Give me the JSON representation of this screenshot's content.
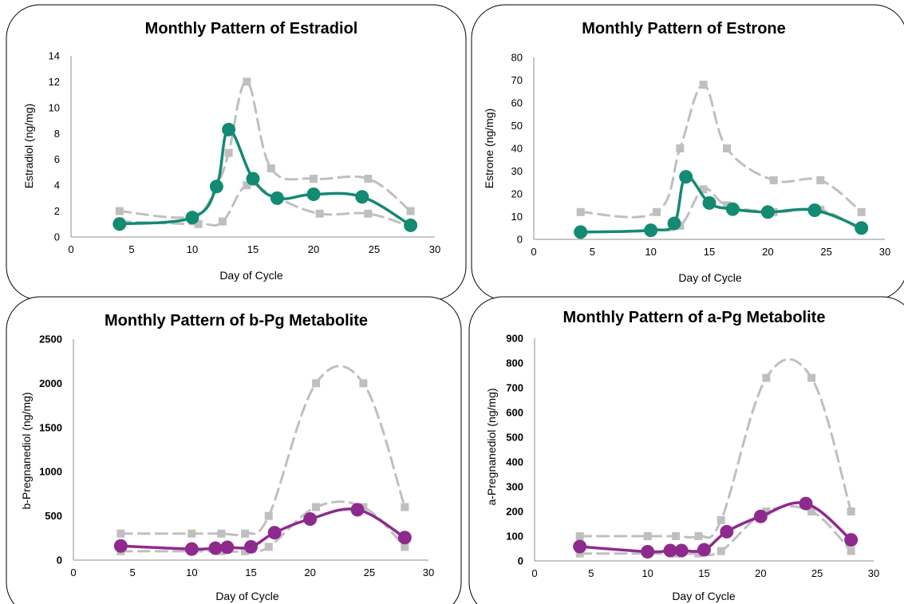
{
  "chart_data": [
    {
      "type": "line",
      "title": "Monthly Pattern of Estradiol",
      "xlabel": "Day of Cycle",
      "ylabel": "Estradiol (ng/mg)",
      "xlim": [
        0,
        30
      ],
      "ylim": [
        0,
        14
      ],
      "xticks": [
        0,
        5,
        10,
        15,
        20,
        25,
        30
      ],
      "yticks": [
        0,
        2,
        4,
        6,
        8,
        10,
        12,
        14
      ],
      "bold_yticks": false,
      "legend": "none",
      "grid": false,
      "colors": {
        "series": "#138a72",
        "range": "#bfbfbf"
      },
      "series": [
        {
          "role": "range-high",
          "x": [
            4,
            10,
            12,
            13,
            14.5,
            16.5,
            20,
            24.5,
            28
          ],
          "y": [
            2,
            1.6,
            4,
            6.5,
            12,
            5.3,
            4.5,
            4.5,
            2
          ]
        },
        {
          "role": "range-low",
          "x": [
            4,
            10.5,
            12.5,
            14.5,
            17,
            20.5,
            24.5,
            28
          ],
          "y": [
            1.2,
            1.0,
            1.2,
            4,
            3,
            1.8,
            1.8,
            0.8
          ]
        },
        {
          "role": "main",
          "x": [
            4,
            10,
            12,
            13,
            15,
            17,
            20,
            24,
            28
          ],
          "y": [
            1.0,
            1.5,
            3.9,
            8.3,
            4.5,
            3.0,
            3.3,
            3.1,
            0.9
          ]
        }
      ]
    },
    {
      "type": "line",
      "title": "Monthly Pattern of Estrone",
      "xlabel": "Day of Cycle",
      "ylabel": "Estrone (ng/mg)",
      "xlim": [
        0,
        30
      ],
      "ylim": [
        0,
        80
      ],
      "xticks": [
        0,
        5,
        10,
        15,
        20,
        25,
        30
      ],
      "yticks": [
        0,
        10,
        20,
        30,
        40,
        50,
        60,
        70,
        80
      ],
      "bold_yticks": false,
      "legend": "none",
      "grid": false,
      "colors": {
        "series": "#138a72",
        "range": "#bfbfbf"
      },
      "series": [
        {
          "role": "range-high",
          "x": [
            4,
            10.5,
            12.5,
            14.5,
            16.5,
            20.5,
            24.5,
            28
          ],
          "y": [
            12,
            12,
            40,
            68,
            40,
            26,
            26,
            12
          ]
        },
        {
          "role": "range-low",
          "x": [
            4,
            10,
            12.5,
            14.5,
            16.5,
            20.5,
            24.5,
            28
          ],
          "y": [
            3,
            4,
            6,
            22,
            15,
            12,
            13,
            4
          ]
        },
        {
          "role": "main",
          "x": [
            4,
            10,
            12,
            13,
            15,
            17,
            20,
            24,
            28
          ],
          "y": [
            3.2,
            4.0,
            7.0,
            27.5,
            16.0,
            13.3,
            12.0,
            12.8,
            5.0
          ]
        }
      ]
    },
    {
      "type": "line",
      "title": "Monthly Pattern of b-Pg Metabolite",
      "xlabel": "Day of Cycle",
      "ylabel": "b-Pregnanediol (ng/mg)",
      "xlim": [
        0,
        30
      ],
      "ylim": [
        0,
        2500
      ],
      "xticks": [
        0,
        5,
        10,
        15,
        20,
        25,
        30
      ],
      "yticks": [
        0,
        500,
        1000,
        1500,
        2000,
        2500
      ],
      "bold_yticks": true,
      "legend": "none",
      "grid": false,
      "colors": {
        "series": "#8e2a8e",
        "range": "#bfbfbf"
      },
      "series": [
        {
          "role": "range-high",
          "x": [
            4,
            10,
            12.5,
            14.5,
            16.5,
            20.5,
            24.5,
            28
          ],
          "y": [
            300,
            300,
            300,
            300,
            500,
            2000,
            2000,
            600
          ]
        },
        {
          "role": "range-low",
          "x": [
            4,
            10,
            12.5,
            14.5,
            16.5,
            20.5,
            24.5,
            28
          ],
          "y": [
            100,
            100,
            100,
            100,
            150,
            600,
            600,
            150
          ]
        },
        {
          "role": "main",
          "x": [
            4,
            10,
            12,
            13,
            15,
            17,
            20,
            24,
            28
          ],
          "y": [
            160,
            125,
            135,
            145,
            150,
            310,
            465,
            570,
            255
          ]
        }
      ]
    },
    {
      "type": "line",
      "title": "Monthly Pattern of a-Pg Metabolite",
      "xlabel": "Day of Cycle",
      "ylabel": "a-Pregnanediol (ng/mg)",
      "xlim": [
        0,
        30
      ],
      "ylim": [
        0,
        900
      ],
      "xticks": [
        0,
        5,
        10,
        15,
        20,
        25,
        30
      ],
      "yticks": [
        0,
        100,
        200,
        300,
        400,
        500,
        600,
        700,
        800,
        900
      ],
      "bold_yticks": true,
      "legend": "none",
      "grid": false,
      "colors": {
        "series": "#8e2a8e",
        "range": "#bfbfbf"
      },
      "series": [
        {
          "role": "range-high",
          "x": [
            4,
            10,
            12.5,
            14.5,
            16.5,
            20.5,
            24.5,
            28
          ],
          "y": [
            100,
            100,
            100,
            100,
            165,
            740,
            740,
            200
          ]
        },
        {
          "role": "range-low",
          "x": [
            4,
            10,
            12.5,
            14.5,
            16.5,
            20.5,
            24.5,
            28
          ],
          "y": [
            30,
            30,
            30,
            30,
            40,
            200,
            200,
            40
          ]
        },
        {
          "role": "main",
          "x": [
            4,
            10,
            12,
            13,
            15,
            17,
            20,
            24,
            28
          ],
          "y": [
            58,
            37,
            42,
            42,
            45,
            118,
            180,
            232,
            85
          ]
        }
      ]
    }
  ]
}
